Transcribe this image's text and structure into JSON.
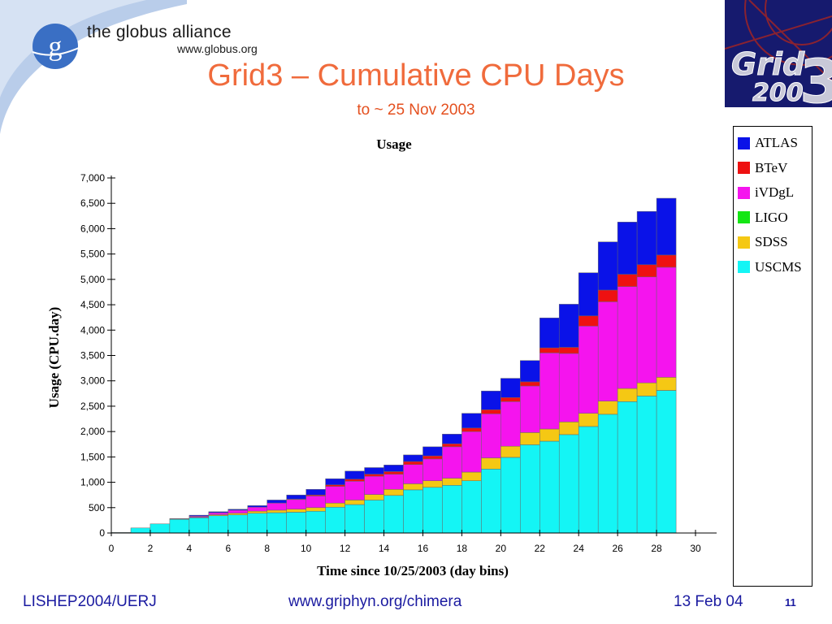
{
  "header": {
    "logo_text": "the globus alliance",
    "logo_url": "www.globus.org",
    "title": "Grid3 – Cumulative CPU Days",
    "subtitle": "to ~ 25 Nov 2003"
  },
  "grid_logo": {
    "line1": "Grid",
    "line2": "200",
    "big": "3"
  },
  "footer": {
    "left": "LISHEP2004/UERJ",
    "center": "www.griphyn.org/chimera",
    "right": "13 Feb 04",
    "page": "11"
  },
  "colors": {
    "ATLAS": "#0a12e8",
    "BTeV": "#ee1111",
    "iVDgL": "#f514ee",
    "LIGO": "#14e614",
    "SDSS": "#f5c814",
    "USCMS": "#14f5f5",
    "title": "#f06b3c",
    "footer": "#1a1aa0"
  },
  "chart_data": {
    "type": "bar",
    "stacked": true,
    "title": "Usage",
    "xlabel": "Time since 10/25/2003 (day bins)",
    "ylabel": "Usage (CPU.day)",
    "ylim": [
      0,
      7000
    ],
    "xlim": [
      0,
      30
    ],
    "yticks": [
      "0",
      "500",
      "1,000",
      "1,500",
      "2,000",
      "2,500",
      "3,000",
      "3,500",
      "4,000",
      "4,500",
      "5,000",
      "5,500",
      "6,000",
      "6,500",
      "7,000"
    ],
    "xticks": [
      "0",
      "2",
      "4",
      "6",
      "8",
      "10",
      "12",
      "14",
      "16",
      "18",
      "20",
      "22",
      "24",
      "26",
      "28",
      "30"
    ],
    "legend_position": "right",
    "categories": [
      1,
      2,
      3,
      4,
      5,
      6,
      7,
      8,
      9,
      10,
      11,
      12,
      13,
      14,
      15,
      16,
      17,
      18,
      19,
      20,
      21,
      22,
      23,
      24,
      25,
      26,
      27,
      28,
      29,
      30
    ],
    "series": [
      {
        "name": "USCMS",
        "values": [
          10,
          100,
          180,
          270,
          300,
          340,
          360,
          390,
          400,
          410,
          430,
          510,
          560,
          650,
          740,
          850,
          900,
          940,
          1030,
          1260,
          1490,
          1740,
          1810,
          1940,
          2100,
          2340,
          2590,
          2700,
          2810,
          0
        ]
      },
      {
        "name": "SDSS",
        "values": [
          0,
          0,
          0,
          5,
          10,
          20,
          30,
          40,
          50,
          60,
          70,
          80,
          90,
          110,
          120,
          120,
          130,
          140,
          170,
          220,
          220,
          240,
          240,
          250,
          260,
          260,
          260,
          260,
          260,
          0
        ]
      },
      {
        "name": "LIGO",
        "values": [
          0,
          0,
          0,
          0,
          0,
          0,
          0,
          0,
          0,
          0,
          0,
          0,
          0,
          0,
          0,
          0,
          0,
          0,
          0,
          0,
          0,
          0,
          0,
          0,
          0,
          0,
          0,
          0,
          0,
          0
        ]
      },
      {
        "name": "iVDgL",
        "values": [
          0,
          0,
          0,
          10,
          20,
          40,
          60,
          80,
          140,
          190,
          230,
          330,
          370,
          360,
          300,
          380,
          430,
          620,
          800,
          870,
          880,
          920,
          1500,
          1350,
          1720,
          1960,
          2010,
          2090,
          2170,
          0
        ]
      },
      {
        "name": "BTeV",
        "values": [
          0,
          0,
          0,
          0,
          0,
          0,
          0,
          0,
          0,
          10,
          20,
          30,
          40,
          40,
          50,
          60,
          60,
          60,
          70,
          80,
          80,
          80,
          100,
          120,
          200,
          230,
          240,
          240,
          240,
          0
        ]
      },
      {
        "name": "ATLAS",
        "values": [
          0,
          0,
          0,
          0,
          20,
          20,
          20,
          30,
          60,
          80,
          110,
          120,
          160,
          130,
          130,
          130,
          180,
          190,
          290,
          370,
          380,
          420,
          590,
          850,
          850,
          950,
          1030,
          1050,
          1120,
          0
        ]
      }
    ],
    "legend_order": [
      "ATLAS",
      "BTeV",
      "iVDgL",
      "LIGO",
      "SDSS",
      "USCMS"
    ]
  }
}
